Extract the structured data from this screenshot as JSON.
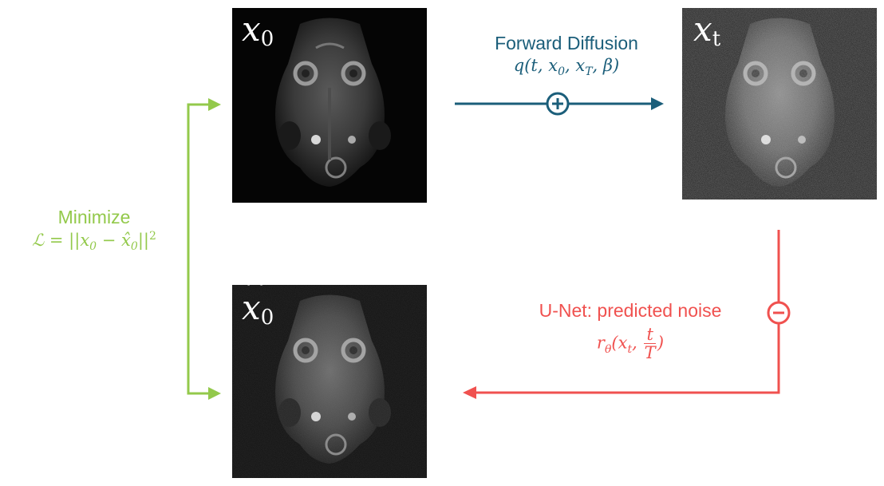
{
  "panels": {
    "x0": {
      "symbol": "x",
      "subscript": "0",
      "hat": false
    },
    "xt": {
      "symbol": "x",
      "subscript": "t",
      "hat": false
    },
    "x0hat": {
      "symbol": "x",
      "subscript": "0",
      "hat": true
    }
  },
  "forward": {
    "title": "Forward Diffusion",
    "formula": "q(t, x₀, x_T, β)",
    "operator": "+"
  },
  "reverse": {
    "title": "U-Net: predicted noise",
    "formula": "r_θ(x_t, t/T)",
    "operator": "-"
  },
  "loss": {
    "title": "Minimize",
    "formula": "ℒ = ||x₀ − x̂₀||²"
  },
  "colors": {
    "forward": "#1b5e7a",
    "reverse": "#f0514f",
    "loss": "#93c94b",
    "panel_background": "#050505"
  }
}
